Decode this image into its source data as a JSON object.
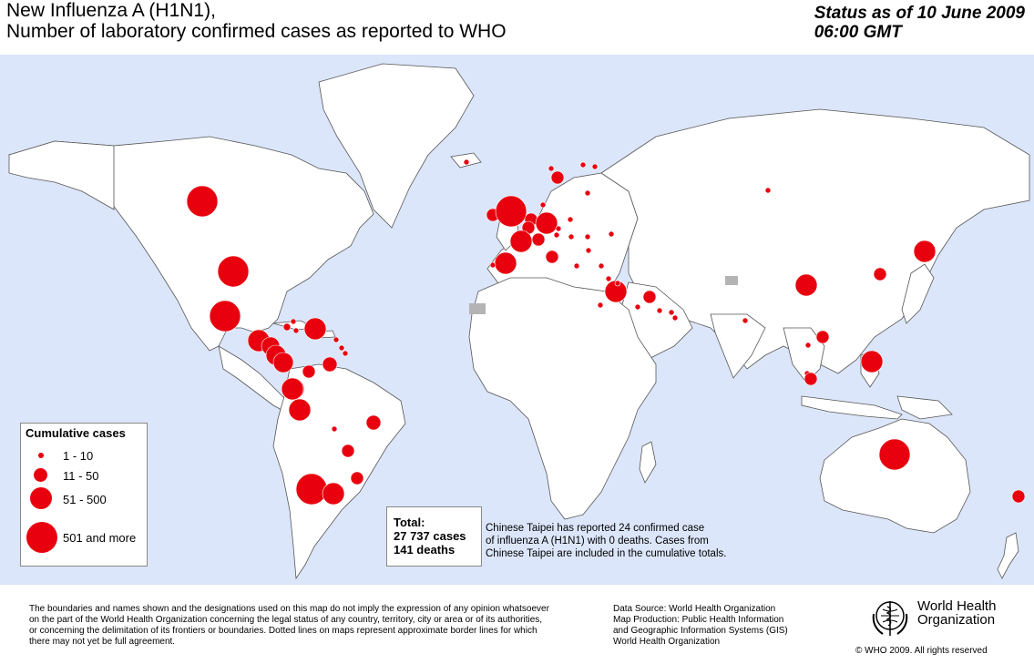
{
  "header": {
    "title_line1": "New Influenza A (H1N1),",
    "title_line2": "Number of  laboratory confirmed cases as reported to WHO",
    "status_line1": "Status as of 10 June 2009",
    "status_line2": "06:00 GMT"
  },
  "legend": {
    "title": "Cumulative cases",
    "items": [
      {
        "label": "1 - 10"
      },
      {
        "label": "11 - 50"
      },
      {
        "label": "51 - 500"
      },
      {
        "label": "501 and more"
      }
    ]
  },
  "totals": {
    "label": "Total:",
    "cases": "27 737 cases",
    "deaths": "141 deaths"
  },
  "taipei_note": {
    "line1": "Chinese Taipei has reported 24 confirmed case",
    "line2": "of influenza A (H1N1) with 0 deaths. Cases from",
    "line3": "Chinese Taipei are included in the cumulative totals."
  },
  "footer": {
    "disclaimer_line1": "The boundaries and names shown and the designations used on this map do not imply the expression of any opinion whatsoever",
    "disclaimer_line2": "on the part of the World Health Organization concerning the legal status of any country, territory, city or area or of its authorities,",
    "disclaimer_line3": "or concerning the delimitation of its frontiers or boundaries.  Dotted lines on maps represent approximate border lines for which",
    "disclaimer_line4": "there may not yet be full agreement.",
    "source_line1": "Data Source: World Health Organization",
    "source_line2": "Map Production: Public Health Information",
    "source_line3": "and Geographic Information Systems (GIS)",
    "source_line4": "World Health Organization",
    "org_line1": "World Health",
    "org_line2": "Organization",
    "copyright": "© WHO 2009. All rights reserved"
  },
  "colors": {
    "ocean": "#dce6fa",
    "land": "#ffffff",
    "dot": "#e8000e",
    "no_data": "#b4b4b4"
  },
  "map_markers": [
    {
      "name": "canada",
      "category": 4
    },
    {
      "name": "usa",
      "category": 4
    },
    {
      "name": "mexico",
      "category": 4
    },
    {
      "name": "guatemala",
      "category": 3
    },
    {
      "name": "el-salvador",
      "category": 3
    },
    {
      "name": "honduras",
      "category": 3
    },
    {
      "name": "costa-rica",
      "category": 3
    },
    {
      "name": "panama",
      "category": 3
    },
    {
      "name": "cuba",
      "category": 2
    },
    {
      "name": "dominican-republic",
      "category": 3
    },
    {
      "name": "colombia",
      "category": 2
    },
    {
      "name": "venezuela",
      "category": 2
    },
    {
      "name": "ecuador",
      "category": 3
    },
    {
      "name": "peru",
      "category": 3
    },
    {
      "name": "brazil",
      "category": 2
    },
    {
      "name": "bolivia",
      "category": 1
    },
    {
      "name": "paraguay",
      "category": 2
    },
    {
      "name": "chile",
      "category": 4
    },
    {
      "name": "argentina",
      "category": 3
    },
    {
      "name": "uruguay",
      "category": 2
    },
    {
      "name": "uk",
      "category": 4
    },
    {
      "name": "ireland",
      "category": 2
    },
    {
      "name": "spain",
      "category": 3
    },
    {
      "name": "france",
      "category": 3
    },
    {
      "name": "germany",
      "category": 3
    },
    {
      "name": "netherlands",
      "category": 2
    },
    {
      "name": "italy",
      "category": 2
    },
    {
      "name": "sweden",
      "category": 2
    },
    {
      "name": "norway",
      "category": 1
    },
    {
      "name": "iceland",
      "category": 1
    },
    {
      "name": "israel",
      "category": 3
    },
    {
      "name": "kuwait",
      "category": 2
    },
    {
      "name": "china",
      "category": 3
    },
    {
      "name": "japan",
      "category": 3
    },
    {
      "name": "korea",
      "category": 2
    },
    {
      "name": "philippines",
      "category": 3
    },
    {
      "name": "thailand",
      "category": 2
    },
    {
      "name": "malaysia",
      "category": 2
    },
    {
      "name": "australia",
      "category": 4
    },
    {
      "name": "new-zealand",
      "category": 2
    },
    {
      "name": "russia",
      "category": 1
    },
    {
      "name": "india",
      "category": 1
    }
  ]
}
